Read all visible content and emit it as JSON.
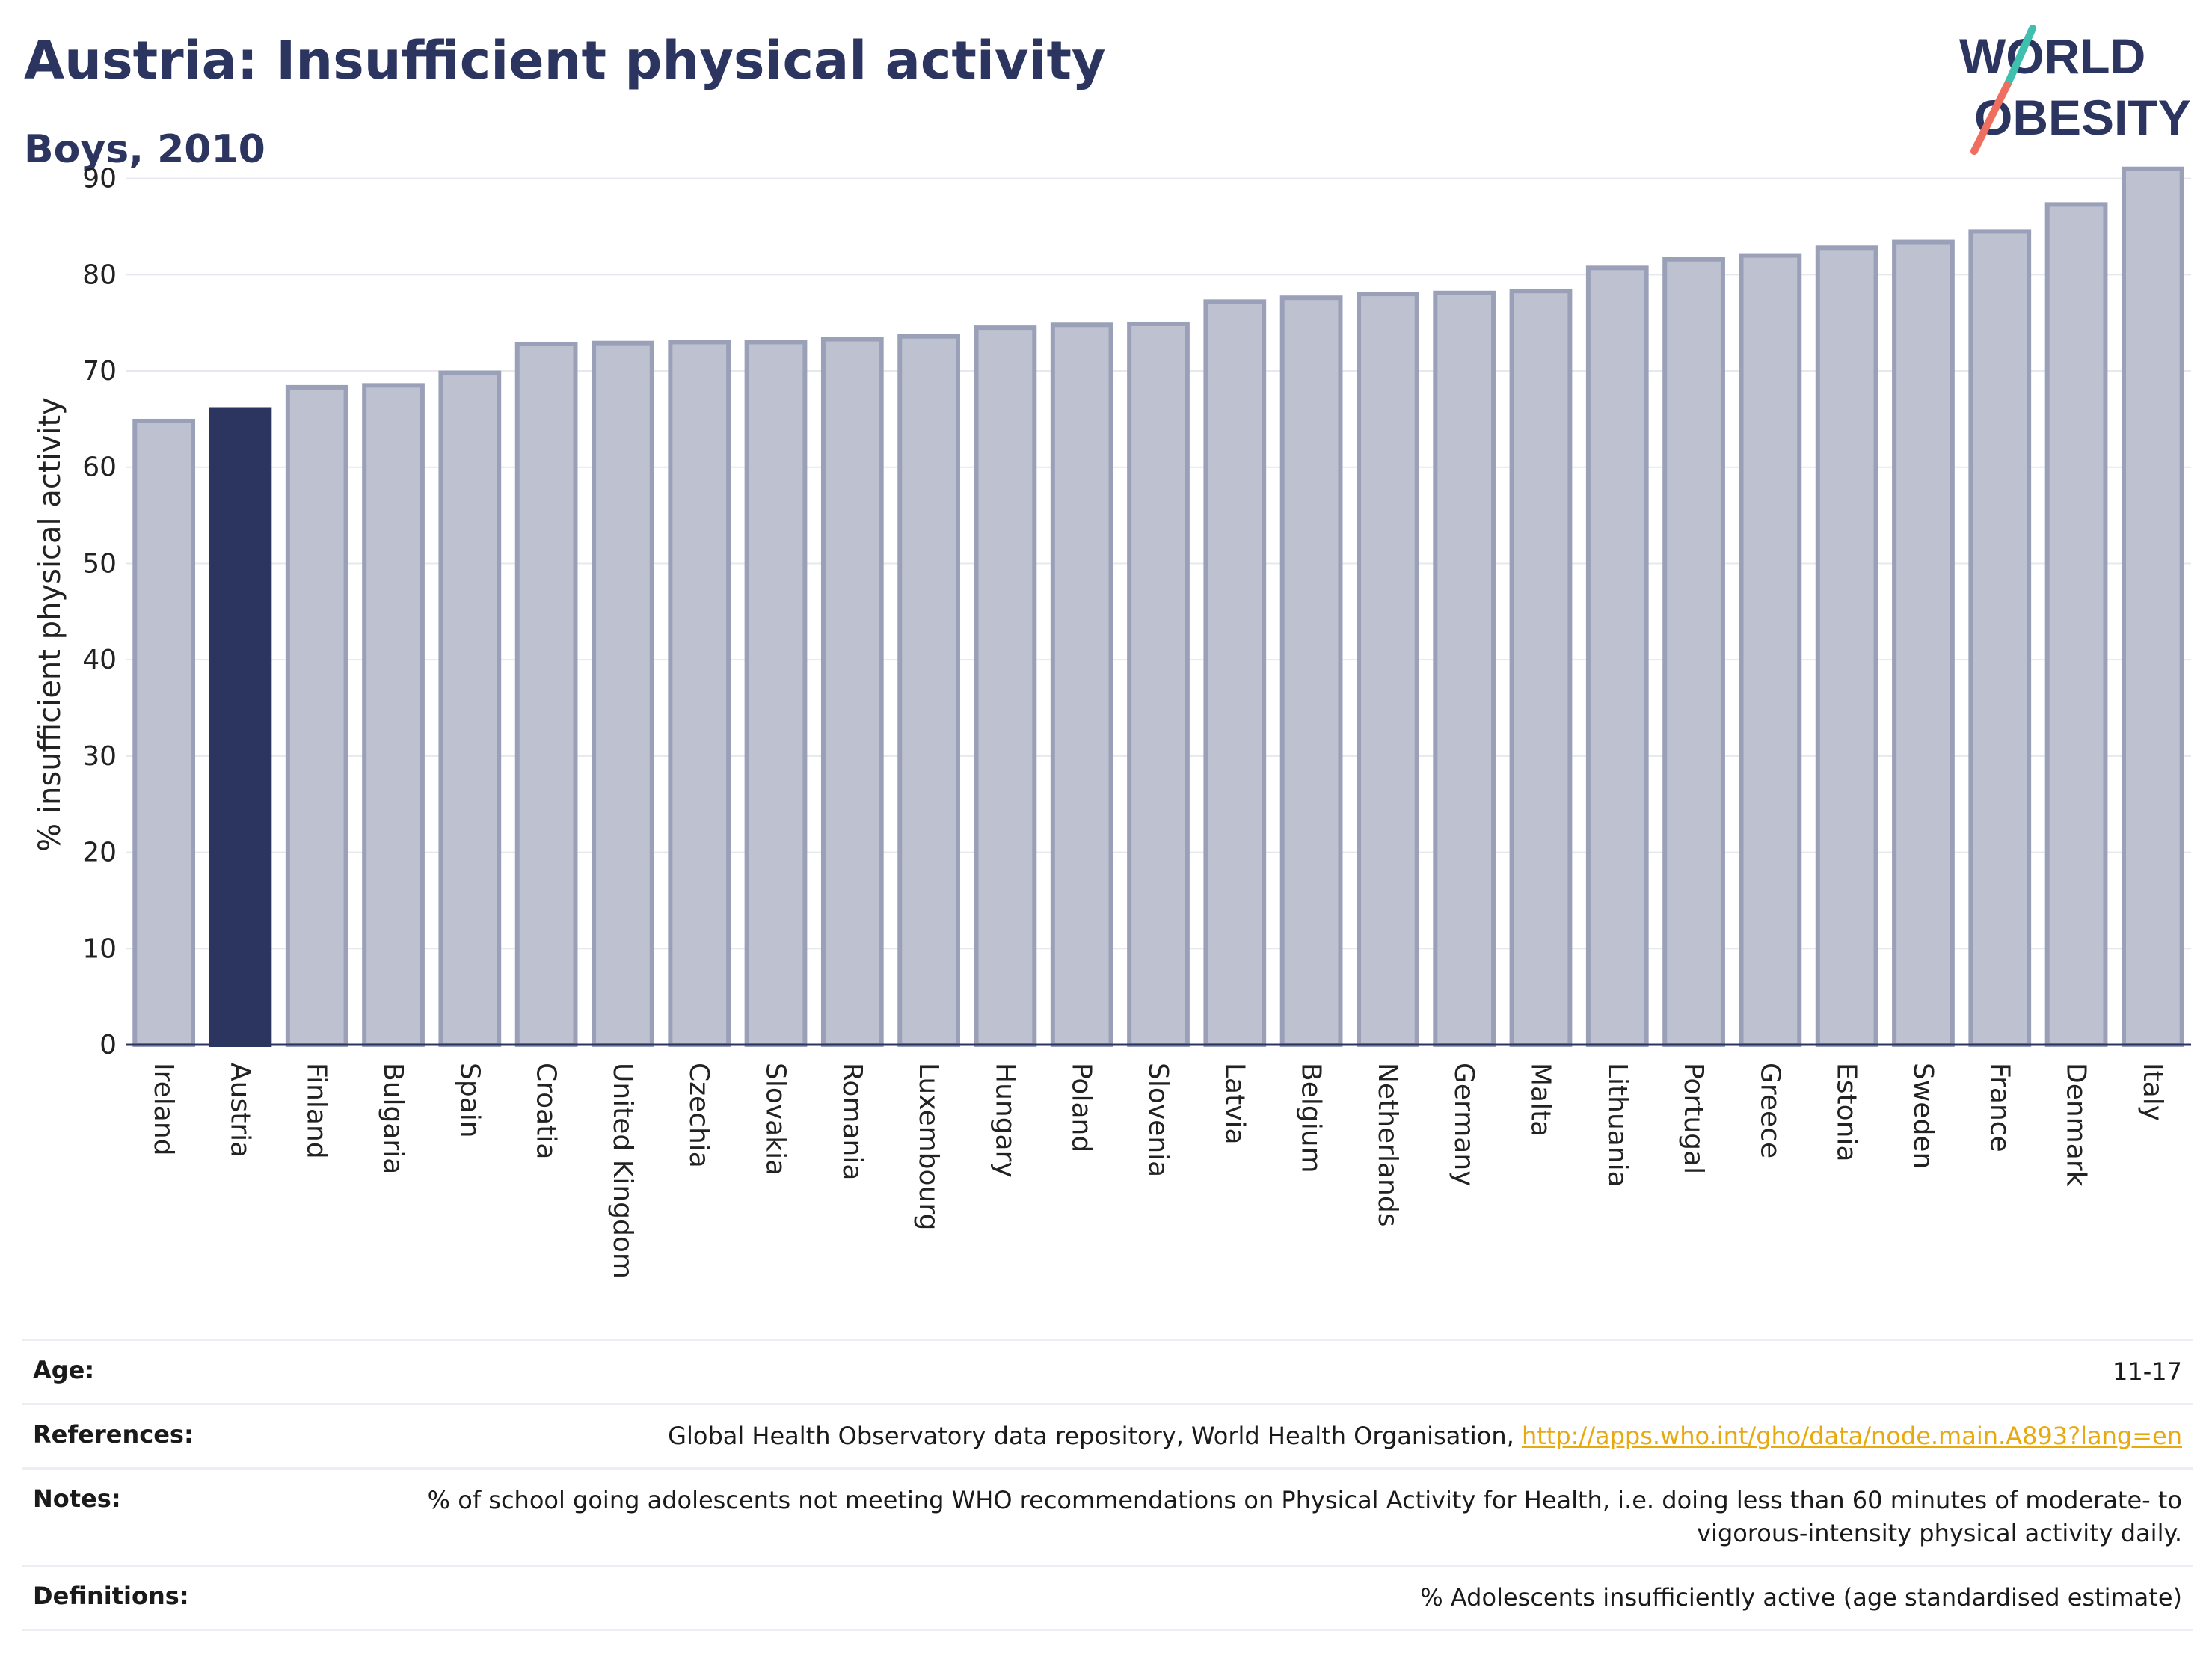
{
  "header": {
    "title": "Austria: Insufficient physical activity",
    "subtitle": "Boys, 2010"
  },
  "logo": {
    "line1": "WORLD",
    "line2": "OBESITY"
  },
  "colors": {
    "highlight": "#2b3560",
    "bar": "#bec1cf",
    "bar_border": "#9aa0b8",
    "link": "#e8a90e"
  },
  "chart_data": {
    "type": "bar",
    "ylabel": "% insufficient physical activity",
    "ylim": [
      0,
      93
    ],
    "yticks": [
      0,
      10,
      20,
      30,
      40,
      50,
      60,
      70,
      80,
      90
    ],
    "highlight": "Austria",
    "grid": true,
    "categories": [
      "Ireland",
      "Austria",
      "Finland",
      "Bulgaria",
      "Spain",
      "Croatia",
      "United Kingdom",
      "Czechia",
      "Slovakia",
      "Romania",
      "Luxembourg",
      "Hungary",
      "Poland",
      "Slovenia",
      "Latvia",
      "Belgium",
      "Netherlands",
      "Germany",
      "Malta",
      "Lithuania",
      "Portugal",
      "Greece",
      "Estonia",
      "Sweden",
      "France",
      "Denmark",
      "Italy"
    ],
    "values": [
      64.8,
      66.0,
      68.3,
      68.5,
      69.8,
      72.8,
      72.9,
      73.0,
      73.0,
      73.3,
      73.6,
      74.5,
      74.8,
      74.9,
      77.2,
      77.6,
      78.0,
      78.1,
      78.3,
      80.7,
      81.6,
      82.0,
      82.8,
      83.4,
      84.5,
      87.3,
      91.0
    ]
  },
  "info": [
    {
      "label": "Age:",
      "value": "11-17"
    },
    {
      "label": "References:",
      "value": "Global Health Observatory data repository, World Health Organisation,",
      "link": "http://apps.who.int/gho/data/node.main.A893?lang=en"
    },
    {
      "label": "Notes:",
      "value": "% of school going adolescents not meeting WHO recommendations on Physical Activity for Health, i.e. doing less than 60 minutes of moderate- to vigorous-intensity physical activity daily."
    },
    {
      "label": "Definitions:",
      "value": "% Adolescents insufficiently active (age standardised estimate)"
    }
  ]
}
